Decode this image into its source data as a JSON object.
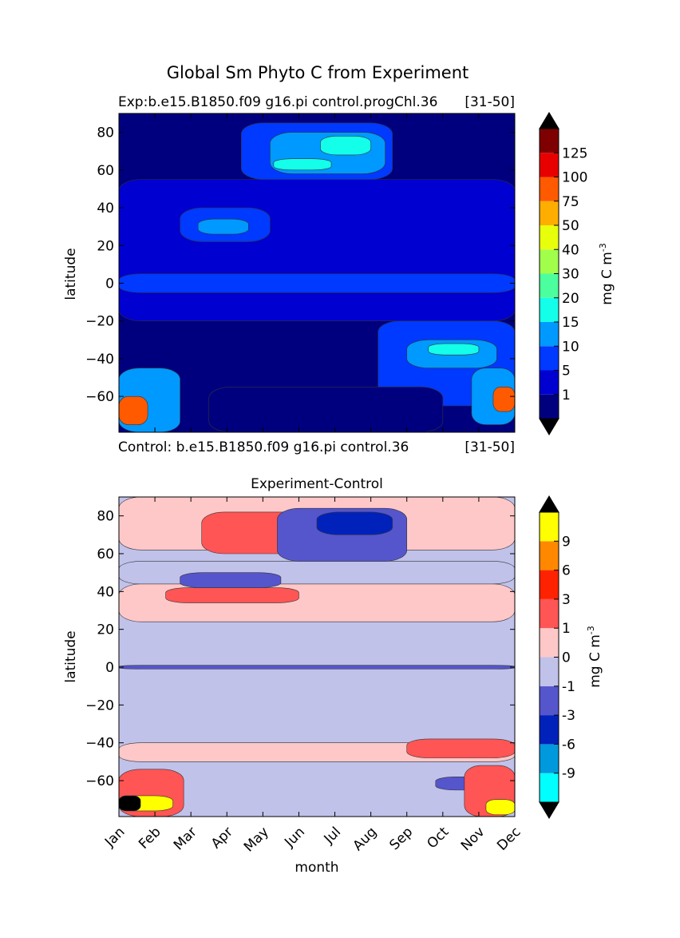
{
  "chart_data": [
    {
      "type": "heatmap",
      "subtype": "filled-contour",
      "suptitle": "Global Sm Phyto C from Experiment",
      "title_left": "Exp:b.e15.B1850.f09 g16.pi control.progChl.36",
      "title_right": "[31-50]",
      "footer_left": "Control: b.e15.B1850.f09 g16.pi control.36",
      "footer_right": "[31-50]",
      "xlabel": "",
      "ylabel": "latitude",
      "x_categories": [
        "Jan",
        "Feb",
        "Mar",
        "Apr",
        "May",
        "Jun",
        "Jul",
        "Aug",
        "Sep",
        "Oct",
        "Nov",
        "Dec"
      ],
      "ylim": [
        -79,
        90
      ],
      "yticks": [
        80,
        60,
        40,
        20,
        0,
        -20,
        -40,
        -60
      ],
      "colorbar": {
        "label": "mg C m",
        "label_sup": "-3",
        "extend": "both",
        "levels": [
          "1",
          "5",
          "10",
          "15",
          "20",
          "30",
          "40",
          "50",
          "75",
          "100",
          "125"
        ],
        "colors": [
          "#00007f",
          "#0000d0",
          "#0039ff",
          "#0099ff",
          "#14ffea",
          "#4cff9e",
          "#a1ff4c",
          "#e8ff0c",
          "#ffae00",
          "#ff5a00",
          "#e80000",
          "#7f0000"
        ],
        "under_color": "#000000",
        "over_color": "#000000"
      },
      "fields": [
        {
          "name": "background",
          "month": [
            0,
            11
          ],
          "lat": [
            -79,
            90
          ],
          "level": 0,
          "note": "deep background low values"
        },
        {
          "name": "north-low",
          "month": [
            0,
            11
          ],
          "lat": [
            -20,
            55
          ],
          "level": 1
        },
        {
          "name": "equator-band",
          "month": [
            0,
            11
          ],
          "lat": [
            -5,
            5
          ],
          "level": 2
        },
        {
          "name": "north-bloom-outer",
          "month": [
            3.4,
            7.6
          ],
          "lat": [
            55,
            85
          ],
          "level": 2
        },
        {
          "name": "north-bloom-mid",
          "month": [
            4.2,
            7.4
          ],
          "lat": [
            58,
            80
          ],
          "level": 3
        },
        {
          "name": "north-bloom-core",
          "month": [
            5.6,
            7.0
          ],
          "lat": [
            68,
            78
          ],
          "level": 4
        },
        {
          "name": "north-bloom-core2",
          "month": [
            4.3,
            5.9
          ],
          "lat": [
            60,
            66
          ],
          "level": 4
        },
        {
          "name": "north-temperate-bloom",
          "month": [
            1.7,
            4.2
          ],
          "lat": [
            22,
            40
          ],
          "level": 2
        },
        {
          "name": "north-temperate-core",
          "month": [
            2.2,
            3.6
          ],
          "lat": [
            26,
            34
          ],
          "level": 3
        },
        {
          "name": "south-bloom-outer",
          "month": [
            7.2,
            11
          ],
          "lat": [
            -65,
            -20
          ],
          "level": 2
        },
        {
          "name": "south-bloom-mid",
          "month": [
            8.0,
            10.5
          ],
          "lat": [
            -45,
            -30
          ],
          "level": 3
        },
        {
          "name": "south-bloom-core",
          "month": [
            8.6,
            10.0
          ],
          "lat": [
            -38,
            -32
          ],
          "level": 4
        },
        {
          "name": "austral-dec",
          "month": [
            9.8,
            11
          ],
          "lat": [
            -75,
            -45
          ],
          "level": 3
        },
        {
          "name": "austral-dec-core",
          "month": [
            10.4,
            11
          ],
          "lat": [
            -68,
            -55
          ],
          "level": 9
        },
        {
          "name": "austral-jan",
          "month": [
            0,
            1.7
          ],
          "lat": [
            -79,
            -45
          ],
          "level": 3
        },
        {
          "name": "austral-jan-core",
          "month": [
            0,
            0.8
          ],
          "lat": [
            -75,
            -60
          ],
          "level": 9
        },
        {
          "name": "south-winter-low",
          "month": [
            2.5,
            9.0
          ],
          "lat": [
            -79,
            -55
          ],
          "level": 0
        }
      ]
    },
    {
      "type": "heatmap",
      "subtype": "filled-contour",
      "title": "Experiment-Control",
      "xlabel": "month",
      "ylabel": "latitude",
      "x_categories": [
        "Jan",
        "Feb",
        "Mar",
        "Apr",
        "May",
        "Jun",
        "Jul",
        "Aug",
        "Sep",
        "Oct",
        "Nov",
        "Dec"
      ],
      "ylim": [
        -79,
        90
      ],
      "yticks": [
        80,
        60,
        40,
        20,
        0,
        -20,
        -40,
        -60
      ],
      "colorbar": {
        "label": "mg C m",
        "label_sup": "-3",
        "extend": "both",
        "levels": [
          "-9",
          "-6",
          "-3",
          "-1",
          "0",
          "1",
          "3",
          "6",
          "9"
        ],
        "colors": [
          "#00ffff",
          "#0099dd",
          "#0022bb",
          "#5555cc",
          "#c0c2ea",
          "#ffc8c8",
          "#ff5555",
          "#ff2200",
          "#ff8800",
          "#ffff00"
        ],
        "under_color": "#000000",
        "over_color": "#000000"
      },
      "fields": [
        {
          "name": "background",
          "month": [
            0,
            11
          ],
          "lat": [
            -79,
            90
          ],
          "level": 4
        },
        {
          "name": "north-pos",
          "month": [
            0,
            11
          ],
          "lat": [
            62,
            90
          ],
          "level": 5
        },
        {
          "name": "lat40-pos",
          "month": [
            0,
            11
          ],
          "lat": [
            24,
            44
          ],
          "level": 5
        },
        {
          "name": "lat50-neg",
          "month": [
            0,
            11
          ],
          "lat": [
            44,
            56
          ],
          "level": 4
        },
        {
          "name": "eq-neg-band",
          "month": [
            0,
            11
          ],
          "lat": [
            -1,
            1
          ],
          "level": 3
        },
        {
          "name": "south-pos",
          "month": [
            0,
            11
          ],
          "lat": [
            -50,
            -40
          ],
          "level": 5
        },
        {
          "name": "north-bloom-red",
          "month": [
            2.3,
            7.5
          ],
          "lat": [
            60,
            82
          ],
          "level": 6
        },
        {
          "name": "north-bloom-blue",
          "month": [
            4.4,
            8.0
          ],
          "lat": [
            56,
            84
          ],
          "level": 3
        },
        {
          "name": "north-bloom-blue-core",
          "month": [
            5.5,
            7.6
          ],
          "lat": [
            70,
            82
          ],
          "level": 2
        },
        {
          "name": "lat38-red",
          "month": [
            1.3,
            5.0
          ],
          "lat": [
            34,
            42
          ],
          "level": 6
        },
        {
          "name": "lat45-blue",
          "month": [
            1.7,
            4.5
          ],
          "lat": [
            42,
            50
          ],
          "level": 3
        },
        {
          "name": "south-red-east",
          "month": [
            8.0,
            11
          ],
          "lat": [
            -48,
            -38
          ],
          "level": 6
        },
        {
          "name": "south-blue",
          "month": [
            8.8,
            10.5
          ],
          "lat": [
            -65,
            -58
          ],
          "level": 3
        },
        {
          "name": "jan-south-red",
          "month": [
            0,
            1.8
          ],
          "lat": [
            -79,
            -54
          ],
          "level": 6
        },
        {
          "name": "jan-south-yellow",
          "month": [
            0,
            1.5
          ],
          "lat": [
            -76,
            -68
          ],
          "level": 9
        },
        {
          "name": "jan-south-black",
          "month": [
            0,
            0.6
          ],
          "lat": [
            -76,
            -68
          ],
          "level": 10
        },
        {
          "name": "dec-south-red",
          "month": [
            9.6,
            11
          ],
          "lat": [
            -79,
            -52
          ],
          "level": 6
        },
        {
          "name": "dec-south-yellow",
          "month": [
            10.2,
            11
          ],
          "lat": [
            -78,
            -70
          ],
          "level": 9
        }
      ]
    }
  ]
}
